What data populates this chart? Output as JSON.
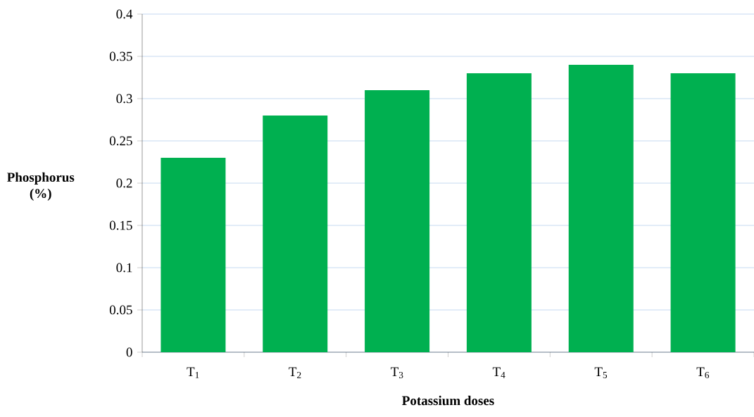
{
  "chart_data": {
    "type": "bar",
    "xlabel": "Potassium doses",
    "ylabel": "Phosphorus (%)",
    "categories": [
      "T$_{1}$",
      "T$_{2}$",
      "T$_{3}$",
      "T$_{4}$",
      "T$_{5}$",
      "T$_{6}$"
    ],
    "values": [
      0.23,
      0.28,
      0.31,
      0.33,
      0.34,
      0.33
    ],
    "color": "#00b050",
    "ylim": [
      0,
      0.4
    ],
    "yticks": [
      0,
      0.05,
      0.1,
      0.15,
      0.2,
      0.25,
      0.3,
      0.35,
      0.4
    ],
    "grid": "y"
  }
}
